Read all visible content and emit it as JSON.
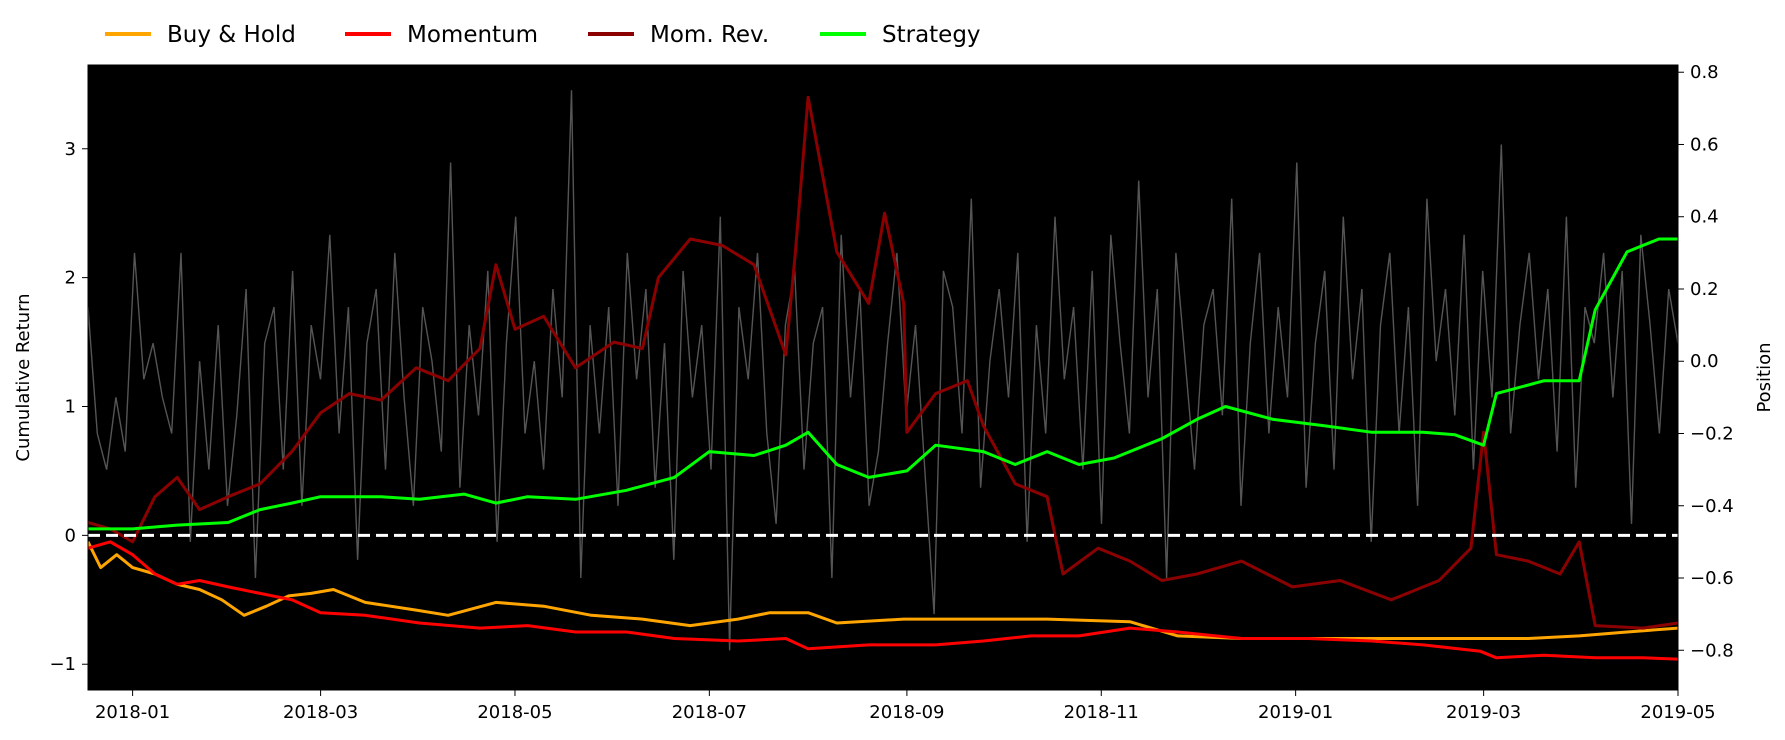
{
  "chart_data": {
    "type": "line",
    "legend_position": "top-left, above plot",
    "background": "#000000",
    "grid": false,
    "x_ticks": [
      "2018-01",
      "2018-03",
      "2018-05",
      "2018-07",
      "2018-09",
      "2018-11",
      "2019-01",
      "2019-03",
      "2019-05"
    ],
    "xlim": [
      "2017-12-18",
      "2019-05-01"
    ],
    "ylabel": "Cumulative Return",
    "ylim": [
      -1.2,
      3.65
    ],
    "y_ticks": [
      -1,
      0,
      1,
      2,
      3
    ],
    "y2label": "Position",
    "y2lim": [
      -0.91,
      0.82
    ],
    "y2_ticks": [
      -0.8,
      -0.6,
      -0.4,
      -0.2,
      0.0,
      0.2,
      0.4,
      0.6,
      0.8
    ],
    "y2_tick_labels": [
      "−0.8",
      "−0.6",
      "−0.4",
      "−0.2",
      "0.0",
      "0.2",
      "0.4",
      "0.6",
      "0.8"
    ],
    "y_tick_labels": [
      "−1",
      "0",
      "1",
      "2",
      "3"
    ],
    "reference_line": {
      "y": 0,
      "style": "dashed",
      "color": "#ffffff"
    },
    "series": [
      {
        "name": "Buy & Hold",
        "color": "#ffa500",
        "axis": "left",
        "points": [
          [
            "2017-12-18",
            -0.05
          ],
          [
            "2017-12-22",
            -0.25
          ],
          [
            "2017-12-27",
            -0.15
          ],
          [
            "2018-01-01",
            -0.25
          ],
          [
            "2018-01-08",
            -0.3
          ],
          [
            "2018-01-15",
            -0.38
          ],
          [
            "2018-01-22",
            -0.42
          ],
          [
            "2018-01-29",
            -0.5
          ],
          [
            "2018-02-05",
            -0.62
          ],
          [
            "2018-02-12",
            -0.55
          ],
          [
            "2018-02-19",
            -0.47
          ],
          [
            "2018-02-26",
            -0.45
          ],
          [
            "2018-03-05",
            -0.42
          ],
          [
            "2018-03-15",
            -0.52
          ],
          [
            "2018-03-31",
            -0.58
          ],
          [
            "2018-04-10",
            -0.62
          ],
          [
            "2018-04-25",
            -0.52
          ],
          [
            "2018-05-10",
            -0.55
          ],
          [
            "2018-05-25",
            -0.62
          ],
          [
            "2018-06-10",
            -0.65
          ],
          [
            "2018-06-25",
            -0.7
          ],
          [
            "2018-07-10",
            -0.65
          ],
          [
            "2018-07-20",
            -0.6
          ],
          [
            "2018-08-01",
            -0.6
          ],
          [
            "2018-08-10",
            -0.68
          ],
          [
            "2018-08-31",
            -0.65
          ],
          [
            "2018-09-15",
            -0.65
          ],
          [
            "2018-10-15",
            -0.65
          ],
          [
            "2018-11-10",
            -0.67
          ],
          [
            "2018-11-25",
            -0.78
          ],
          [
            "2018-12-15",
            -0.8
          ],
          [
            "2019-01-15",
            -0.8
          ],
          [
            "2019-02-15",
            -0.8
          ],
          [
            "2019-03-15",
            -0.8
          ],
          [
            "2019-03-31",
            -0.78
          ],
          [
            "2019-04-15",
            -0.75
          ],
          [
            "2019-05-01",
            -0.72
          ]
        ]
      },
      {
        "name": "Momentum",
        "color": "#ff0000",
        "axis": "left",
        "points": [
          [
            "2017-12-18",
            -0.1
          ],
          [
            "2017-12-25",
            -0.05
          ],
          [
            "2018-01-01",
            -0.15
          ],
          [
            "2018-01-08",
            -0.3
          ],
          [
            "2018-01-15",
            -0.38
          ],
          [
            "2018-01-22",
            -0.35
          ],
          [
            "2018-01-31",
            -0.4
          ],
          [
            "2018-02-10",
            -0.45
          ],
          [
            "2018-02-20",
            -0.5
          ],
          [
            "2018-03-01",
            -0.6
          ],
          [
            "2018-03-15",
            -0.62
          ],
          [
            "2018-04-01",
            -0.68
          ],
          [
            "2018-04-20",
            -0.72
          ],
          [
            "2018-05-05",
            -0.7
          ],
          [
            "2018-05-20",
            -0.75
          ],
          [
            "2018-06-05",
            -0.75
          ],
          [
            "2018-06-20",
            -0.8
          ],
          [
            "2018-07-10",
            -0.82
          ],
          [
            "2018-07-25",
            -0.8
          ],
          [
            "2018-08-01",
            -0.88
          ],
          [
            "2018-08-20",
            -0.85
          ],
          [
            "2018-09-10",
            -0.85
          ],
          [
            "2018-09-25",
            -0.82
          ],
          [
            "2018-10-10",
            -0.78
          ],
          [
            "2018-10-25",
            -0.78
          ],
          [
            "2018-11-10",
            -0.72
          ],
          [
            "2018-11-25",
            -0.75
          ],
          [
            "2018-12-15",
            -0.8
          ],
          [
            "2019-01-05",
            -0.8
          ],
          [
            "2019-01-25",
            -0.82
          ],
          [
            "2019-02-10",
            -0.85
          ],
          [
            "2019-02-28",
            -0.9
          ],
          [
            "2019-03-05",
            -0.95
          ],
          [
            "2019-03-20",
            -0.93
          ],
          [
            "2019-04-05",
            -0.95
          ],
          [
            "2019-04-20",
            -0.95
          ],
          [
            "2019-05-01",
            -0.96
          ]
        ]
      },
      {
        "name": "Mom. Rev.",
        "color": "#8b0000",
        "axis": "left",
        "points": [
          [
            "2017-12-18",
            0.1
          ],
          [
            "2017-12-25",
            0.05
          ],
          [
            "2018-01-01",
            -0.05
          ],
          [
            "2018-01-08",
            0.3
          ],
          [
            "2018-01-15",
            0.45
          ],
          [
            "2018-01-22",
            0.2
          ],
          [
            "2018-01-31",
            0.3
          ],
          [
            "2018-02-10",
            0.4
          ],
          [
            "2018-02-20",
            0.65
          ],
          [
            "2018-03-01",
            0.95
          ],
          [
            "2018-03-10",
            1.1
          ],
          [
            "2018-03-20",
            1.05
          ],
          [
            "2018-03-31",
            1.3
          ],
          [
            "2018-04-10",
            1.2
          ],
          [
            "2018-04-20",
            1.45
          ],
          [
            "2018-04-25",
            2.1
          ],
          [
            "2018-05-01",
            1.6
          ],
          [
            "2018-05-10",
            1.7
          ],
          [
            "2018-05-20",
            1.3
          ],
          [
            "2018-06-01",
            1.5
          ],
          [
            "2018-06-10",
            1.45
          ],
          [
            "2018-06-15",
            2.0
          ],
          [
            "2018-06-25",
            2.3
          ],
          [
            "2018-07-05",
            2.25
          ],
          [
            "2018-07-15",
            2.1
          ],
          [
            "2018-07-25",
            1.4
          ],
          [
            "2018-07-28",
            2.2
          ],
          [
            "2018-08-01",
            3.4
          ],
          [
            "2018-08-10",
            2.2
          ],
          [
            "2018-08-20",
            1.8
          ],
          [
            "2018-08-25",
            2.5
          ],
          [
            "2018-08-31",
            1.8
          ],
          [
            "2018-09-01",
            0.8
          ],
          [
            "2018-09-10",
            1.1
          ],
          [
            "2018-09-20",
            1.2
          ],
          [
            "2018-09-25",
            0.85
          ],
          [
            "2018-10-05",
            0.4
          ],
          [
            "2018-10-15",
            0.3
          ],
          [
            "2018-10-20",
            -0.3
          ],
          [
            "2018-10-31",
            -0.1
          ],
          [
            "2018-11-10",
            -0.2
          ],
          [
            "2018-11-20",
            -0.35
          ],
          [
            "2018-12-01",
            -0.3
          ],
          [
            "2018-12-15",
            -0.2
          ],
          [
            "2018-12-31",
            -0.4
          ],
          [
            "2019-01-15",
            -0.35
          ],
          [
            "2019-01-31",
            -0.5
          ],
          [
            "2019-02-15",
            -0.35
          ],
          [
            "2019-02-25",
            -0.1
          ],
          [
            "2019-03-01",
            0.8
          ],
          [
            "2019-03-05",
            -0.15
          ],
          [
            "2019-03-15",
            -0.2
          ],
          [
            "2019-03-25",
            -0.3
          ],
          [
            "2019-03-31",
            -0.05
          ],
          [
            "2019-04-05",
            -0.7
          ],
          [
            "2019-04-20",
            -0.72
          ],
          [
            "2019-05-01",
            -0.68
          ]
        ]
      },
      {
        "name": "Strategy",
        "color": "#00ff00",
        "axis": "left",
        "points": [
          [
            "2017-12-18",
            0.05
          ],
          [
            "2018-01-01",
            0.05
          ],
          [
            "2018-01-15",
            0.08
          ],
          [
            "2018-01-31",
            0.1
          ],
          [
            "2018-02-10",
            0.2
          ],
          [
            "2018-02-20",
            0.25
          ],
          [
            "2018-03-01",
            0.3
          ],
          [
            "2018-03-20",
            0.3
          ],
          [
            "2018-04-01",
            0.28
          ],
          [
            "2018-04-15",
            0.32
          ],
          [
            "2018-04-25",
            0.25
          ],
          [
            "2018-05-05",
            0.3
          ],
          [
            "2018-05-20",
            0.28
          ],
          [
            "2018-06-05",
            0.35
          ],
          [
            "2018-06-20",
            0.45
          ],
          [
            "2018-07-01",
            0.65
          ],
          [
            "2018-07-15",
            0.62
          ],
          [
            "2018-07-25",
            0.7
          ],
          [
            "2018-08-01",
            0.8
          ],
          [
            "2018-08-10",
            0.55
          ],
          [
            "2018-08-20",
            0.45
          ],
          [
            "2018-09-01",
            0.5
          ],
          [
            "2018-09-10",
            0.7
          ],
          [
            "2018-09-25",
            0.65
          ],
          [
            "2018-10-05",
            0.55
          ],
          [
            "2018-10-15",
            0.65
          ],
          [
            "2018-10-25",
            0.55
          ],
          [
            "2018-11-05",
            0.6
          ],
          [
            "2018-11-20",
            0.75
          ],
          [
            "2018-12-01",
            0.9
          ],
          [
            "2018-12-10",
            1.0
          ],
          [
            "2018-12-25",
            0.9
          ],
          [
            "2019-01-10",
            0.85
          ],
          [
            "2019-01-25",
            0.8
          ],
          [
            "2019-02-10",
            0.8
          ],
          [
            "2019-02-20",
            0.78
          ],
          [
            "2019-03-01",
            0.7
          ],
          [
            "2019-03-05",
            1.1
          ],
          [
            "2019-03-20",
            1.2
          ],
          [
            "2019-03-31",
            1.2
          ],
          [
            "2019-04-05",
            1.75
          ],
          [
            "2019-04-15",
            2.2
          ],
          [
            "2019-04-25",
            2.3
          ],
          [
            "2019-05-01",
            2.3
          ]
        ]
      }
    ],
    "position_series": {
      "axis": "right",
      "color": "#555555",
      "start": "2017-12-18",
      "end": "2019-05-01",
      "values": [
        0.15,
        -0.2,
        -0.3,
        -0.1,
        -0.25,
        0.3,
        -0.05,
        0.05,
        -0.1,
        -0.2,
        0.3,
        -0.5,
        0.0,
        -0.3,
        0.1,
        -0.4,
        -0.15,
        0.2,
        -0.6,
        0.05,
        0.15,
        -0.3,
        0.25,
        -0.4,
        0.1,
        -0.05,
        0.35,
        -0.2,
        0.15,
        -0.55,
        0.05,
        0.2,
        -0.3,
        0.3,
        -0.1,
        -0.4,
        0.15,
        0.0,
        -0.25,
        0.55,
        -0.35,
        0.1,
        -0.15,
        0.25,
        -0.5,
        0.05,
        0.4,
        -0.2,
        0.0,
        -0.3,
        0.2,
        -0.1,
        0.75,
        -0.6,
        0.1,
        -0.2,
        0.15,
        -0.4,
        0.3,
        -0.05,
        0.2,
        -0.35,
        0.05,
        -0.55,
        0.25,
        -0.1,
        0.1,
        -0.3,
        0.4,
        -0.8,
        0.15,
        -0.05,
        0.3,
        -0.2,
        -0.45,
        0.1,
        0.25,
        -0.3,
        0.05,
        0.15,
        -0.6,
        0.35,
        -0.1,
        0.2,
        -0.4,
        -0.25,
        0.05,
        0.3,
        -0.15,
        0.1,
        -0.3,
        -0.7,
        0.25,
        0.15,
        -0.2,
        0.45,
        -0.35,
        0.0,
        0.2,
        -0.1,
        0.3,
        -0.5,
        0.1,
        -0.2,
        0.4,
        -0.05,
        0.15,
        -0.3,
        0.25,
        -0.45,
        0.35,
        0.05,
        -0.2,
        0.5,
        -0.1,
        0.2,
        -0.6,
        0.3,
        0.0,
        -0.3,
        0.1,
        0.2,
        -0.15,
        0.45,
        -0.4,
        0.05,
        0.3,
        -0.2,
        0.15,
        -0.1,
        0.55,
        -0.35,
        0.05,
        0.25,
        -0.3,
        0.4,
        -0.05,
        0.2,
        -0.5,
        0.1,
        0.3,
        -0.2,
        0.15,
        -0.4,
        0.45,
        0.0,
        0.2,
        -0.15,
        0.35,
        -0.3,
        0.25,
        -0.1,
        0.6,
        -0.2,
        0.1,
        0.3,
        -0.05,
        0.2,
        -0.25,
        0.4,
        -0.35,
        0.15,
        0.05,
        0.3,
        -0.1,
        0.25,
        -0.45,
        0.35,
        0.1,
        -0.2,
        0.2,
        0.05
      ]
    }
  }
}
